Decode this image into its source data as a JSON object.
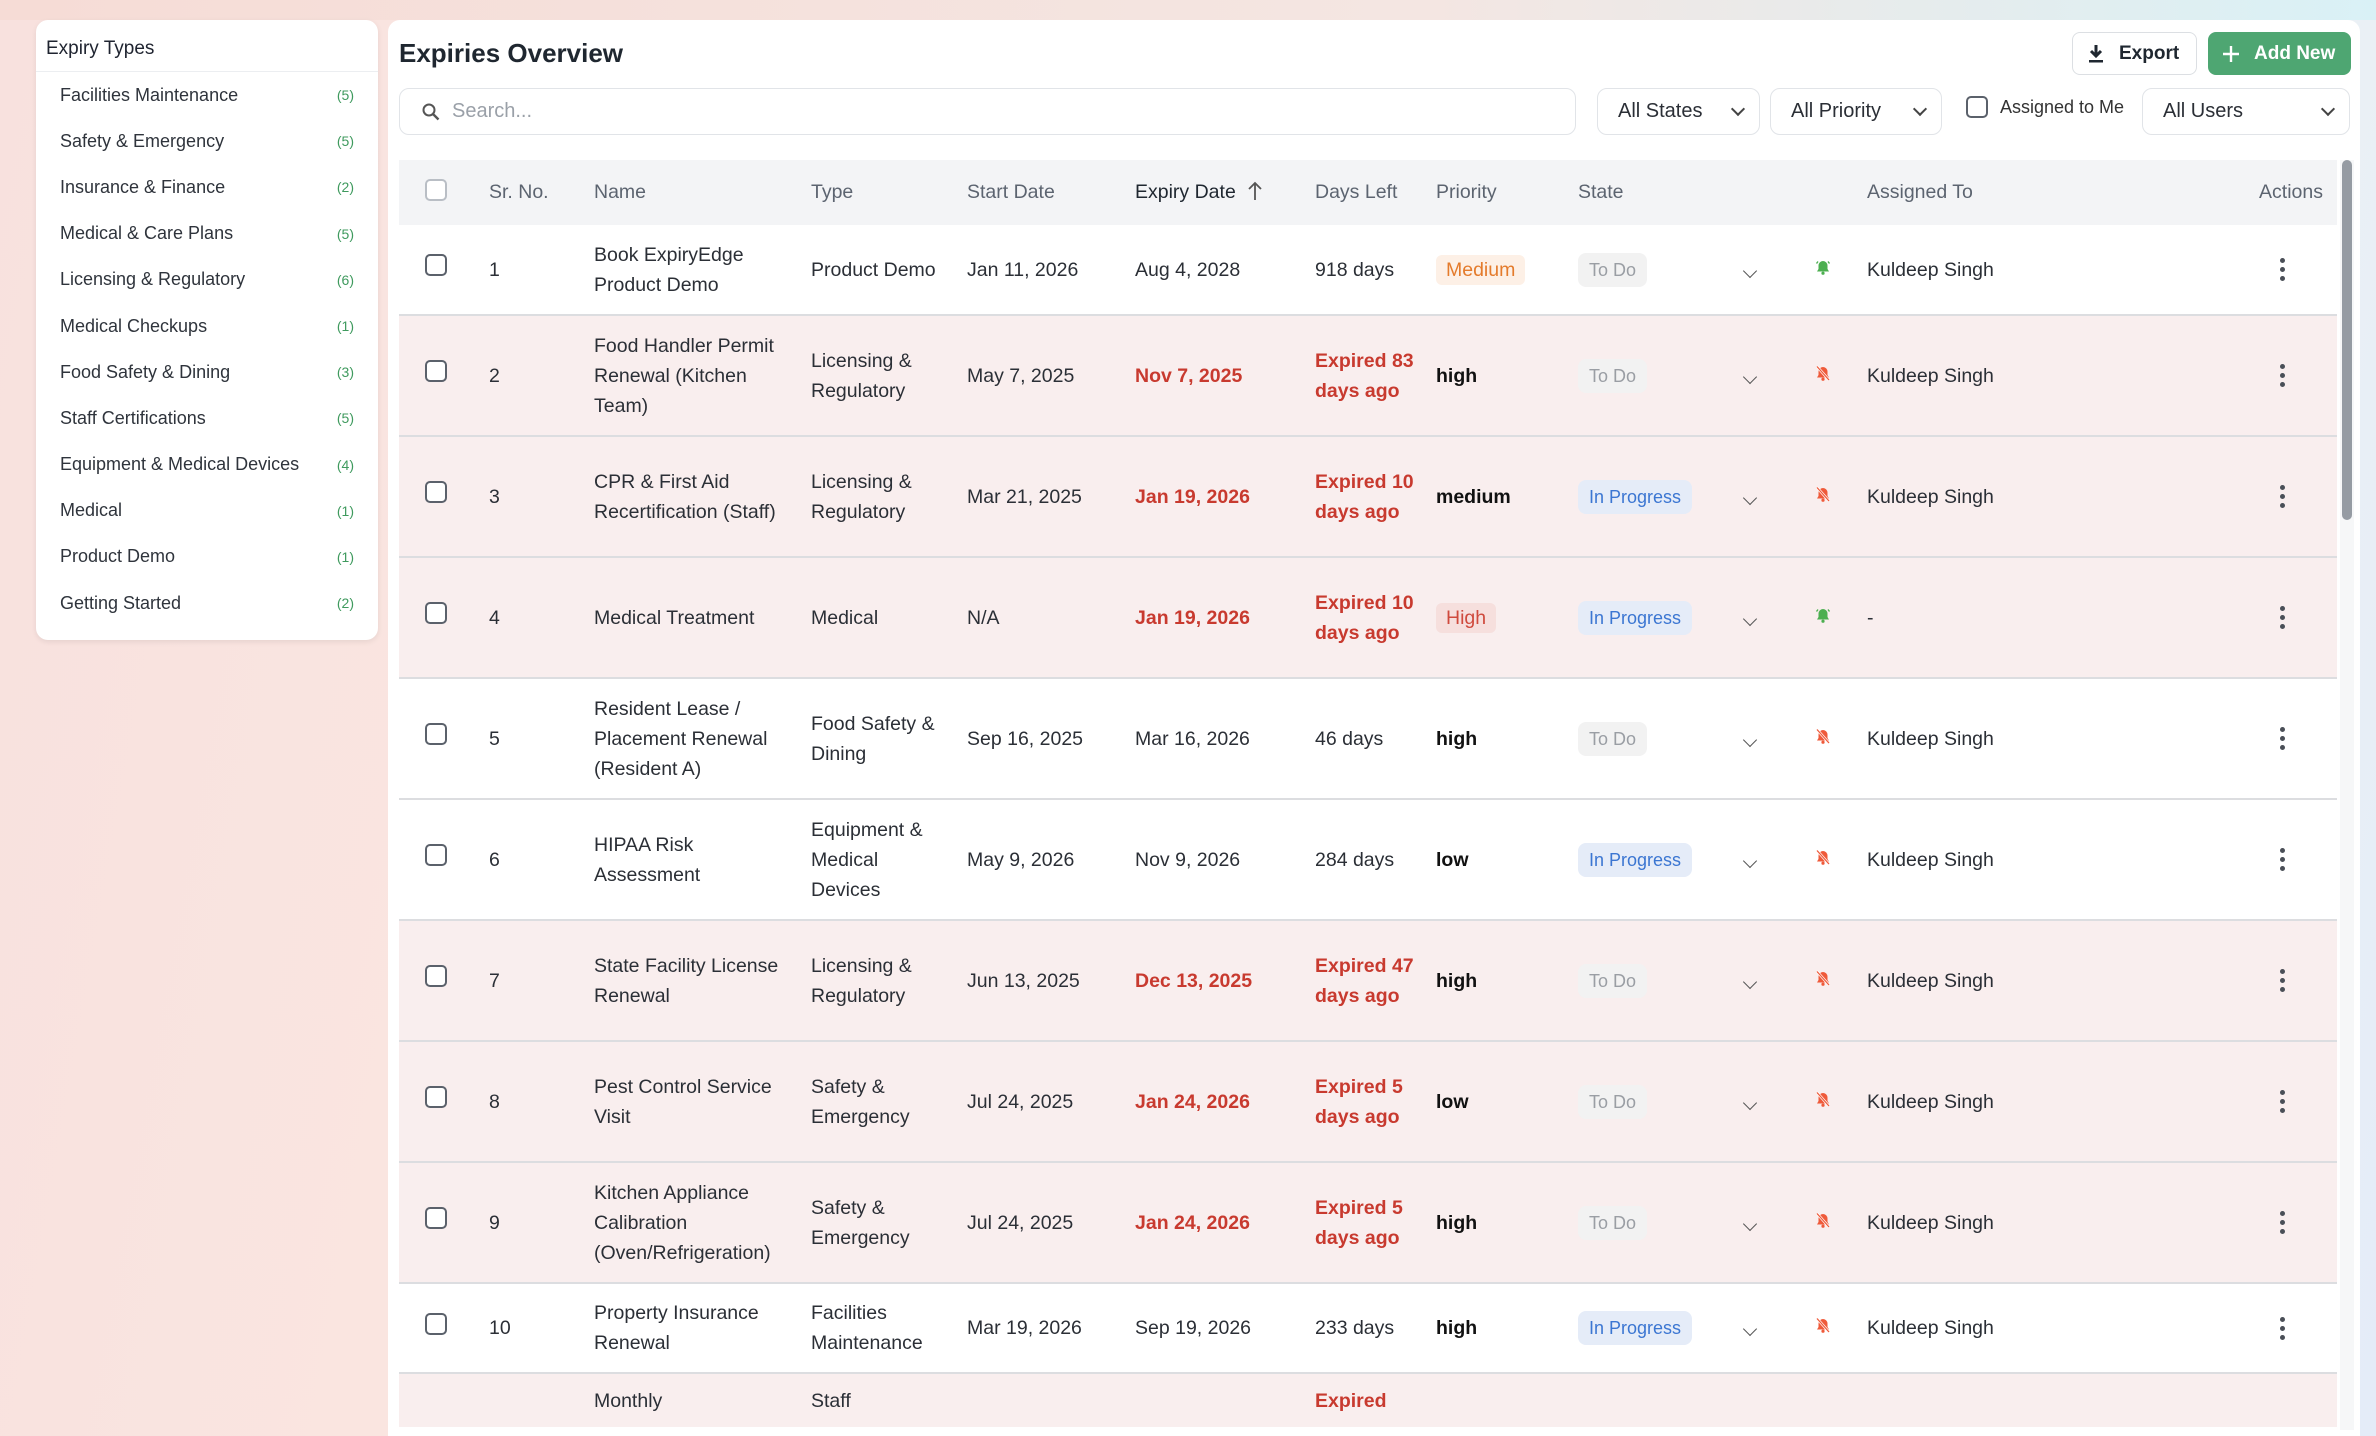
{
  "sidebar": {
    "title": "Expiry Types",
    "items": [
      {
        "label": "Facilities Maintenance",
        "count": "(5)"
      },
      {
        "label": "Safety & Emergency",
        "count": "(5)"
      },
      {
        "label": "Insurance & Finance",
        "count": "(2)"
      },
      {
        "label": "Medical & Care Plans",
        "count": "(5)"
      },
      {
        "label": "Licensing & Regulatory",
        "count": "(6)"
      },
      {
        "label": "Medical Checkups",
        "count": "(1)"
      },
      {
        "label": "Food Safety & Dining",
        "count": "(3)"
      },
      {
        "label": "Staff Certifications",
        "count": "(5)"
      },
      {
        "label": "Equipment & Medical Devices",
        "count": "(4)"
      },
      {
        "label": "Medical",
        "count": "(1)"
      },
      {
        "label": "Product Demo",
        "count": "(1)"
      },
      {
        "label": "Getting Started",
        "count": "(2)"
      }
    ]
  },
  "header": {
    "title": "Expiries Overview",
    "export": "Export",
    "add_new": "Add New"
  },
  "filters": {
    "search_placeholder": "Search...",
    "search_value": "",
    "states": "All States",
    "priority": "All Priority",
    "assigned_to_me": "Assigned to Me",
    "users": "All Users"
  },
  "colors": {
    "accent": "#4ea672",
    "expired": "#c83a2f",
    "bell_on": "#4caf50",
    "bell_off": "#ef5a3a"
  },
  "table": {
    "columns": [
      "Sr. No.",
      "Name",
      "Type",
      "Start Date",
      "Expiry Date",
      "Days Left",
      "Priority",
      "State",
      "Assigned To",
      "Actions"
    ],
    "sorted_column": "Expiry Date",
    "sort_direction": "asc",
    "rows": [
      {
        "sr": "1",
        "name": "Book ExpiryEdge Product Demo",
        "type": "Product Demo",
        "start": "Jan 11, 2026",
        "expiry": "Aug 4, 2028",
        "days": "918 days",
        "priority": "Medium",
        "priority_style": "Medium",
        "state": "To Do",
        "bell": "on",
        "assigned": "Kuldeep Singh",
        "expired": false
      },
      {
        "sr": "2",
        "name": "Food Handler Permit Renewal (Kitchen Team)",
        "type": "Licensing & Regulatory",
        "start": "May 7, 2025",
        "expiry": "Nov 7, 2025",
        "days": "Expired 83 days ago",
        "priority": "high",
        "priority_style": "plain",
        "state": "To Do",
        "bell": "off",
        "assigned": "Kuldeep Singh",
        "expired": true
      },
      {
        "sr": "3",
        "name": "CPR & First Aid Recertification (Staff)",
        "type": "Licensing & Regulatory",
        "start": "Mar 21, 2025",
        "expiry": "Jan 19, 2026",
        "days": "Expired 10 days ago",
        "priority": "medium",
        "priority_style": "plain",
        "state": "In Progress",
        "bell": "off",
        "assigned": "Kuldeep Singh",
        "expired": true
      },
      {
        "sr": "4",
        "name": "Medical Treatment",
        "type": "Medical",
        "start": "N/A",
        "expiry": "Jan 19, 2026",
        "days": "Expired 10 days ago",
        "priority": "High",
        "priority_style": "High",
        "state": "In Progress",
        "bell": "on",
        "assigned": "-",
        "expired": true
      },
      {
        "sr": "5",
        "name": "Resident Lease / Placement Renewal (Resident A)",
        "type": "Food Safety & Dining",
        "start": "Sep 16, 2025",
        "expiry": "Mar 16, 2026",
        "days": "46 days",
        "priority": "high",
        "priority_style": "plain",
        "state": "To Do",
        "bell": "off",
        "assigned": "Kuldeep Singh",
        "expired": false
      },
      {
        "sr": "6",
        "name": "HIPAA Risk Assessment",
        "type": "Equipment & Medical Devices",
        "start": "May 9, 2026",
        "expiry": "Nov 9, 2026",
        "days": "284 days",
        "priority": "low",
        "priority_style": "plain",
        "state": "In Progress",
        "bell": "off",
        "assigned": "Kuldeep Singh",
        "expired": false
      },
      {
        "sr": "7",
        "name": "State Facility License Renewal",
        "type": "Licensing & Regulatory",
        "start": "Jun 13, 2025",
        "expiry": "Dec 13, 2025",
        "days": "Expired 47 days ago",
        "priority": "high",
        "priority_style": "plain",
        "state": "To Do",
        "bell": "off",
        "assigned": "Kuldeep Singh",
        "expired": true
      },
      {
        "sr": "8",
        "name": "Pest Control Service Visit",
        "type": "Safety & Emergency",
        "start": "Jul 24, 2025",
        "expiry": "Jan 24, 2026",
        "days": "Expired 5 days ago",
        "priority": "low",
        "priority_style": "plain",
        "state": "To Do",
        "bell": "off",
        "assigned": "Kuldeep Singh",
        "expired": true
      },
      {
        "sr": "9",
        "name": "Kitchen Appliance Calibration (Oven/Refrigeration)",
        "type": "Safety & Emergency",
        "start": "Jul 24, 2025",
        "expiry": "Jan 24, 2026",
        "days": "Expired 5 days ago",
        "priority": "high",
        "priority_style": "plain",
        "state": "To Do",
        "bell": "off",
        "assigned": "Kuldeep Singh",
        "expired": true
      },
      {
        "sr": "10",
        "name": "Property Insurance Renewal",
        "type": "Facilities Maintenance",
        "start": "Mar 19, 2026",
        "expiry": "Sep 19, 2026",
        "days": "233 days",
        "priority": "high",
        "priority_style": "plain",
        "state": "In Progress",
        "bell": "off",
        "assigned": "Kuldeep Singh",
        "expired": false
      },
      {
        "sr": "",
        "name": "Monthly",
        "type": "Staff",
        "start": "",
        "expiry": "",
        "days": "Expired",
        "priority": "",
        "priority_style": "plain",
        "state": "",
        "bell": "",
        "assigned": "",
        "expired": true
      }
    ]
  }
}
